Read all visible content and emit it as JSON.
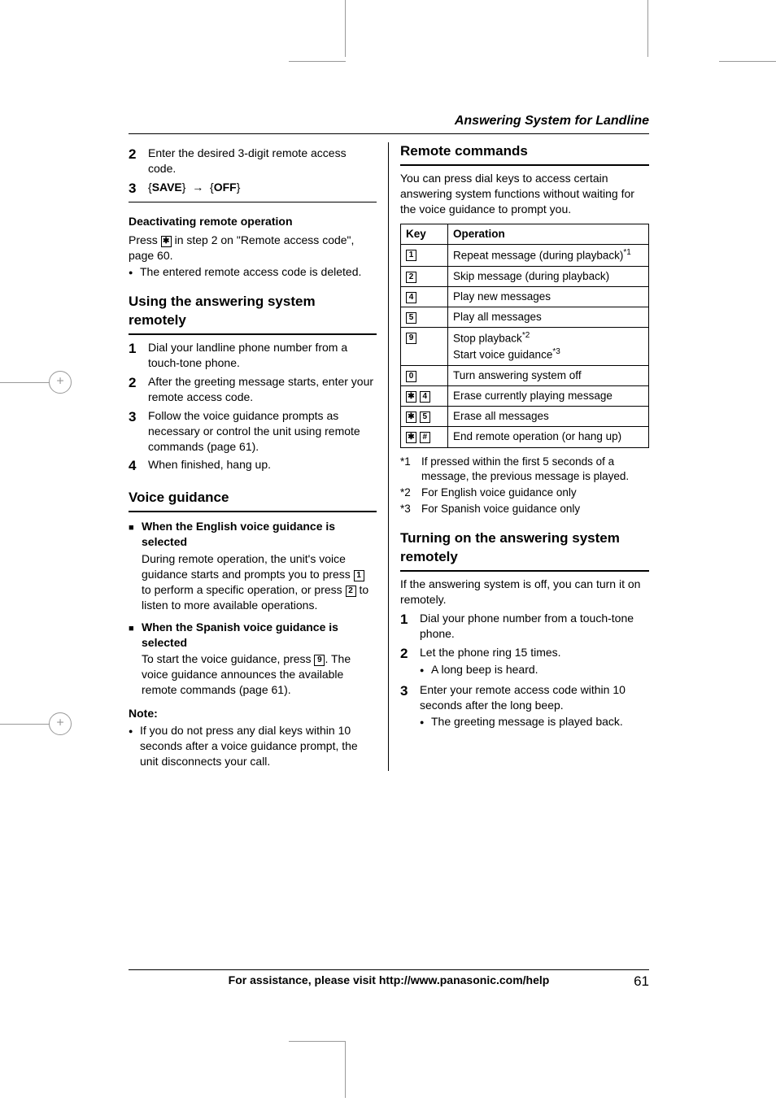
{
  "header": {
    "running": "Answering System for Landline"
  },
  "left": {
    "steps_a": [
      {
        "n": "2",
        "text": "Enter the desired 3-digit remote access code."
      },
      {
        "n": "3",
        "save": "SAVE",
        "off": "OFF"
      }
    ],
    "deact_head": "Deactivating remote operation",
    "deact_p1a": "Press ",
    "deact_key": "✱",
    "deact_p1b": " in step 2 on \"Remote access code\", page 60.",
    "deact_bullet": "The entered remote access code is deleted.",
    "h2a": "Using the answering system remotely",
    "steps_b": [
      {
        "n": "1",
        "text": "Dial your landline phone number from a touch-tone phone."
      },
      {
        "n": "2",
        "text": "After the greeting message starts, enter your remote access code."
      },
      {
        "n": "3",
        "text": "Follow the voice guidance prompts as necessary or control the unit using remote commands (page 61)."
      },
      {
        "n": "4",
        "text": "When finished, hang up."
      }
    ],
    "h2b": "Voice guidance",
    "eng_head": "When the English voice guidance is selected",
    "eng_p_a": "During remote operation, the unit's voice guidance starts and prompts you to press ",
    "eng_k1": "1",
    "eng_p_b": " to perform a specific operation, or press ",
    "eng_k2": "2",
    "eng_p_c": " to listen to more available operations.",
    "spa_head": "When the Spanish voice guidance is selected",
    "spa_p_a": "To start the voice guidance, press ",
    "spa_k": "9",
    "spa_p_b": ". The voice guidance announces the available remote commands (page 61).",
    "note_label": "Note:",
    "note_bullet": "If you do not press any dial keys within 10 seconds after a voice guidance prompt, the unit disconnects your call."
  },
  "right": {
    "h2a": "Remote commands",
    "intro": "You can press dial keys to access certain answering system functions without waiting for the voice guidance to prompt you.",
    "th_key": "Key",
    "th_op": "Operation",
    "rows": [
      {
        "keys": [
          "1"
        ],
        "op": "Repeat message (during playback)",
        "sup": "*1"
      },
      {
        "keys": [
          "2"
        ],
        "op": "Skip message (during playback)"
      },
      {
        "keys": [
          "4"
        ],
        "op": "Play new messages"
      },
      {
        "keys": [
          "5"
        ],
        "op": "Play all messages"
      },
      {
        "keys": [
          "9"
        ],
        "op_lines": [
          {
            "t": "Stop playback",
            "sup": "*2"
          },
          {
            "t": "Start voice guidance",
            "sup": "*3"
          }
        ]
      },
      {
        "keys": [
          "0"
        ],
        "op": "Turn answering system off"
      },
      {
        "keys": [
          "✱",
          "4"
        ],
        "op": "Erase currently playing message"
      },
      {
        "keys": [
          "✱",
          "5"
        ],
        "op": "Erase all messages"
      },
      {
        "keys": [
          "✱",
          "#"
        ],
        "op": "End remote operation (or hang up)"
      }
    ],
    "footnotes": [
      {
        "k": "*1",
        "t": "If pressed within the first 5 seconds of a message, the previous message is played."
      },
      {
        "k": "*2",
        "t": "For English voice guidance only"
      },
      {
        "k": "*3",
        "t": "For Spanish voice guidance only"
      }
    ],
    "h2b": "Turning on the answering system remotely",
    "intro2": "If the answering system is off, you can turn it on remotely.",
    "steps": [
      {
        "n": "1",
        "text": "Dial your phone number from a touch-tone phone."
      },
      {
        "n": "2",
        "text": "Let the phone ring 15 times.",
        "sub": "A long beep is heard."
      },
      {
        "n": "3",
        "text": "Enter your remote access code within 10 seconds after the long beep.",
        "sub": "The greeting message is played back."
      }
    ]
  },
  "footer": {
    "text": "For assistance, please visit http://www.panasonic.com/help",
    "page": "61"
  }
}
